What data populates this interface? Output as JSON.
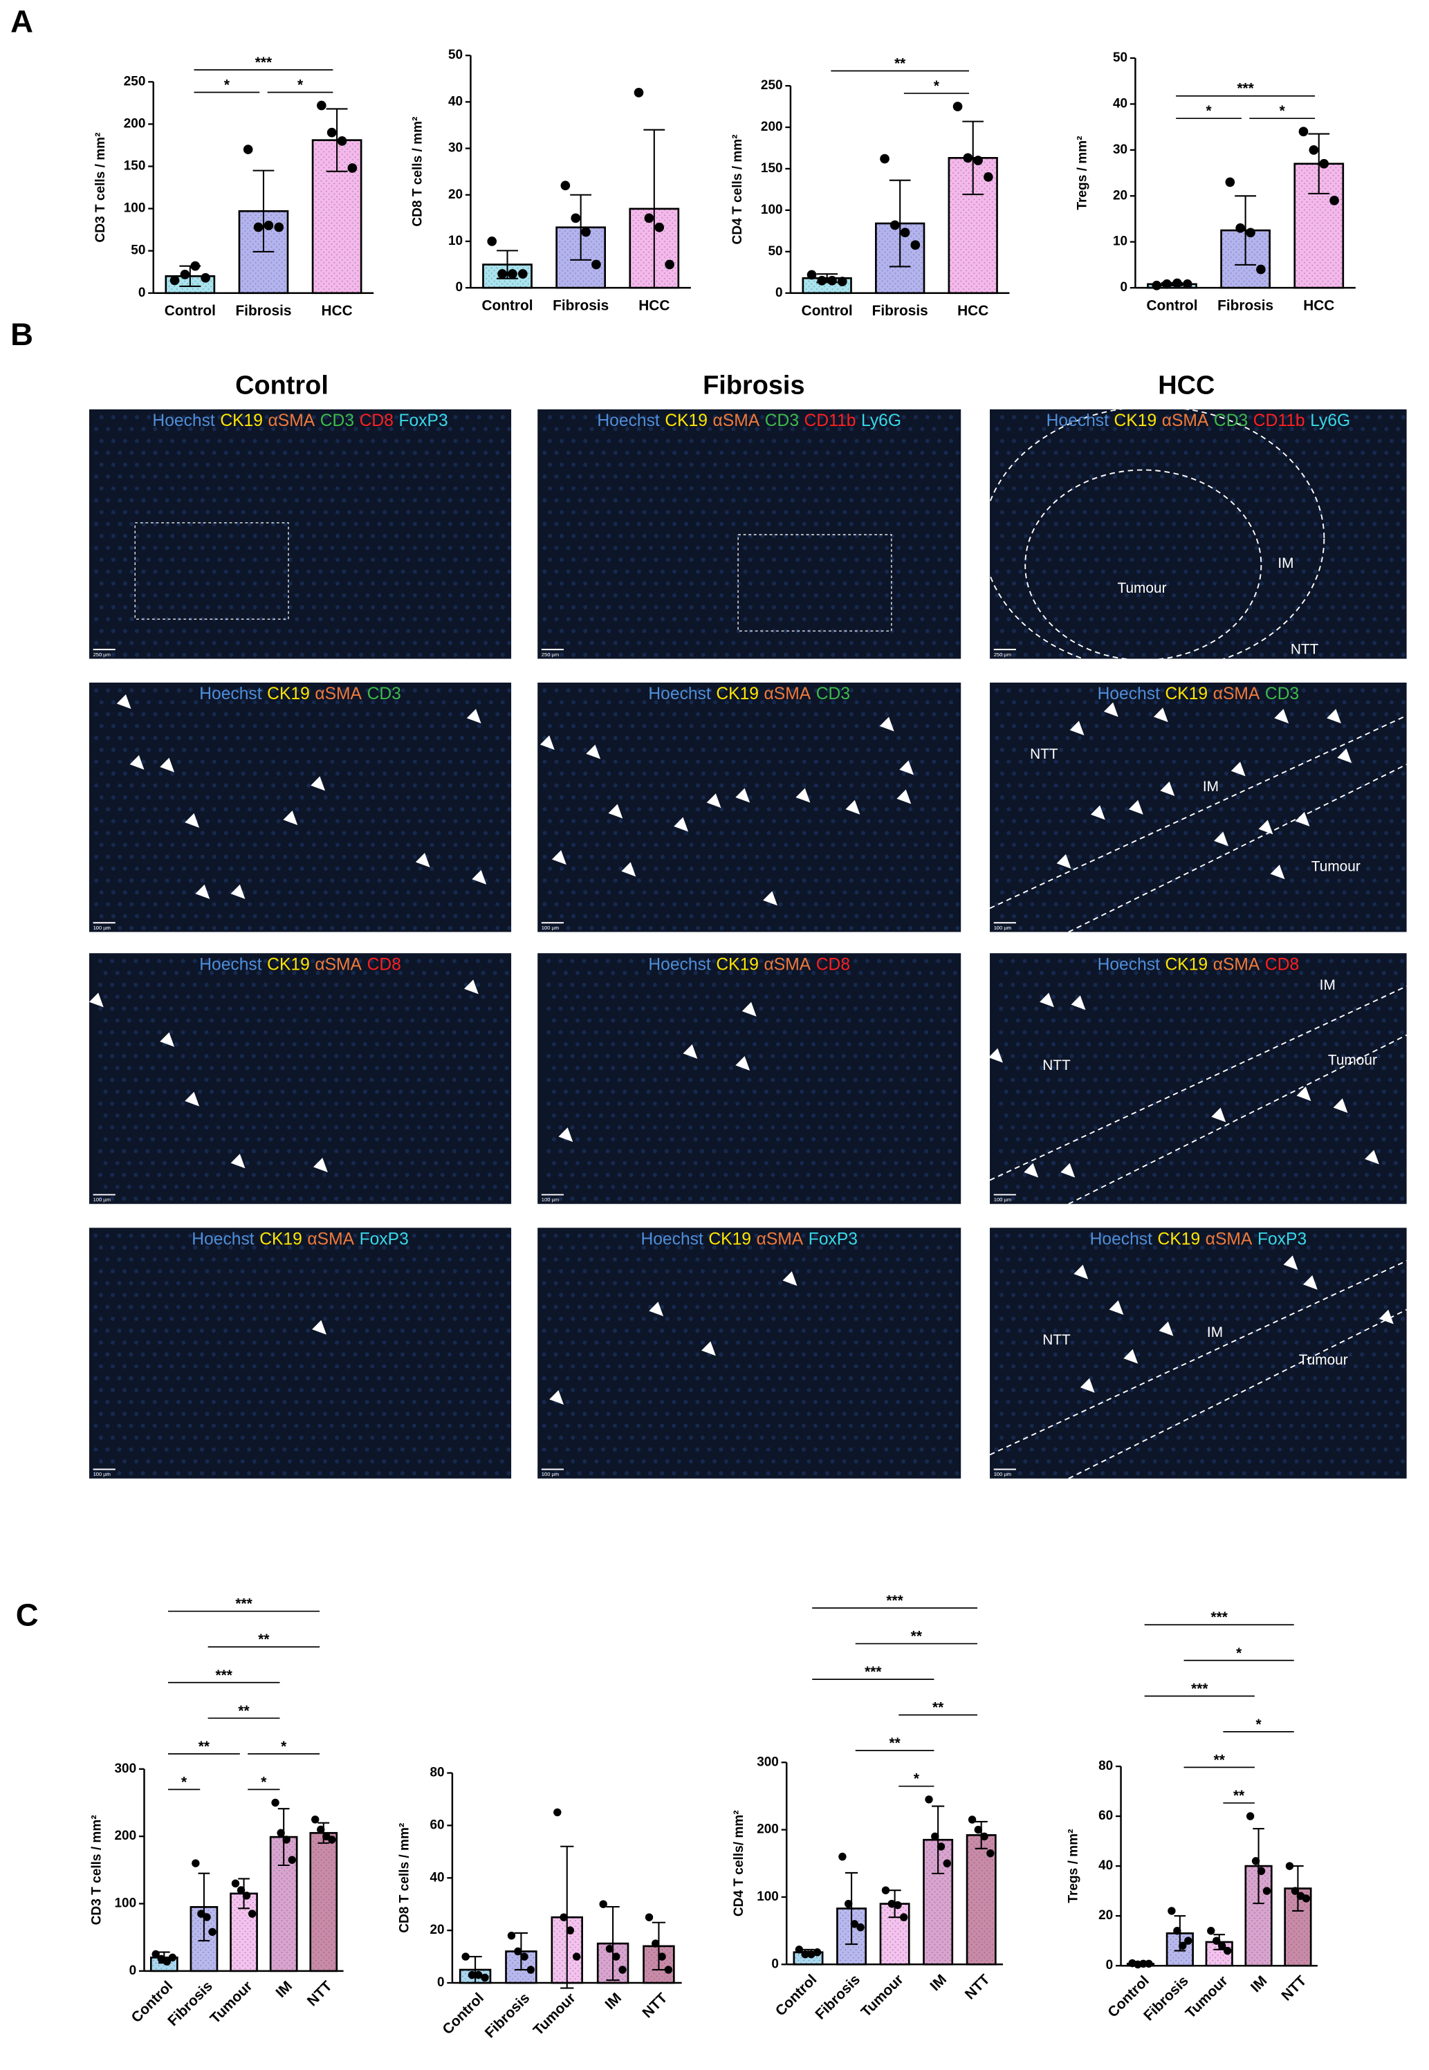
{
  "panels": [
    "A",
    "B",
    "C"
  ],
  "chart_data": [
    {
      "type": "bar",
      "y_label": "CD3 T cells / mm²",
      "categories": [
        "Control",
        "Fibrosis",
        "HCC"
      ],
      "values": [
        20,
        97,
        181
      ],
      "errors": [
        12,
        48,
        37
      ],
      "points": [
        [
          15,
          22,
          32,
          18
        ],
        [
          170,
          78,
          80,
          78
        ],
        [
          222,
          190,
          180,
          148
        ]
      ],
      "colors": [
        "#a8e4ef",
        "#b3b3f0",
        "#f5b8ec"
      ],
      "ylim": [
        0,
        250
      ],
      "yticks": [
        0,
        50,
        100,
        150,
        200,
        250
      ],
      "significance": [
        {
          "from": "Control",
          "to": "Fibrosis",
          "label": "*"
        },
        {
          "from": "Fibrosis",
          "to": "HCC",
          "label": "*"
        },
        {
          "from": "Control",
          "to": "HCC",
          "label": "***"
        }
      ]
    },
    {
      "type": "bar",
      "y_label": "CD8 T cells / mm²",
      "categories": [
        "Control",
        "Fibrosis",
        "HCC"
      ],
      "values": [
        5,
        13,
        17
      ],
      "errors": [
        3,
        7,
        17
      ],
      "points": [
        [
          10,
          3,
          3,
          3
        ],
        [
          22,
          15,
          12,
          5
        ],
        [
          42,
          15,
          13,
          5
        ]
      ],
      "colors": [
        "#a8e4ef",
        "#b3b3f0",
        "#f5b8ec"
      ],
      "ylim": [
        0,
        50
      ],
      "yticks": [
        0,
        10,
        20,
        30,
        40,
        50
      ],
      "significance": []
    },
    {
      "type": "bar",
      "y_label": "CD4 T cells / mm²",
      "categories": [
        "Control",
        "Fibrosis",
        "HCC"
      ],
      "values": [
        18,
        84,
        163
      ],
      "errors": [
        5,
        52,
        44
      ],
      "points": [
        [
          22,
          15,
          15,
          14
        ],
        [
          162,
          82,
          73,
          58
        ],
        [
          225,
          163,
          160,
          140
        ]
      ],
      "colors": [
        "#a8e4ef",
        "#b3b3f0",
        "#f5b8ec"
      ],
      "ylim": [
        0,
        250
      ],
      "yticks": [
        0,
        50,
        100,
        150,
        200,
        250
      ],
      "significance": [
        {
          "from": "Fibrosis",
          "to": "HCC",
          "label": "*"
        },
        {
          "from": "Control",
          "to": "HCC",
          "label": "**"
        }
      ]
    },
    {
      "type": "bar",
      "y_label": "Tregs / mm²",
      "categories": [
        "Control",
        "Fibrosis",
        "HCC"
      ],
      "values": [
        0.8,
        12.5,
        27
      ],
      "errors": [
        0.3,
        7.5,
        6.5
      ],
      "points": [
        [
          0.5,
          0.8,
          1,
          0.8
        ],
        [
          23,
          13,
          12,
          4
        ],
        [
          34,
          30,
          27,
          19
        ]
      ],
      "colors": [
        "#a8e4ef",
        "#b3b3f0",
        "#f5b8ec"
      ],
      "ylim": [
        0,
        50
      ],
      "yticks": [
        0,
        10,
        20,
        30,
        40,
        50
      ],
      "significance": [
        {
          "from": "Control",
          "to": "Fibrosis",
          "label": "*"
        },
        {
          "from": "Fibrosis",
          "to": "HCC",
          "label": "*"
        },
        {
          "from": "Control",
          "to": "HCC",
          "label": "***"
        }
      ]
    },
    {
      "type": "bar",
      "y_label": "CD3 T cells / mm²",
      "categories": [
        "Control",
        "Fibrosis",
        "Tumour",
        "IM",
        "NTT"
      ],
      "values": [
        20,
        95,
        115,
        199,
        205
      ],
      "errors": [
        8,
        50,
        22,
        42,
        15
      ],
      "points": [
        [
          25,
          18,
          14,
          20
        ],
        [
          160,
          85,
          80,
          58
        ],
        [
          130,
          120,
          112,
          85
        ],
        [
          250,
          205,
          195,
          165
        ],
        [
          225,
          210,
          200,
          195
        ]
      ],
      "colors": [
        "#a8d8f0",
        "#b8b8f0",
        "#f5c2ef",
        "#d9a3cf",
        "#c98aa8"
      ],
      "ylim": [
        0,
        300
      ],
      "yticks": [
        0,
        100,
        200,
        300
      ],
      "significance": [
        {
          "from": "Control",
          "to": "Fibrosis",
          "label": "*"
        },
        {
          "from": "Tumour",
          "to": "IM",
          "label": "*"
        },
        {
          "from": "Control",
          "to": "Tumour",
          "label": "**"
        },
        {
          "from": "Tumour",
          "to": "NTT",
          "label": "*"
        },
        {
          "from": "Fibrosis",
          "to": "IM",
          "label": "**"
        },
        {
          "from": "Control",
          "to": "IM",
          "label": "***"
        },
        {
          "from": "Fibrosis",
          "to": "NTT",
          "label": "**"
        },
        {
          "from": "Control",
          "to": "NTT",
          "label": "***"
        }
      ]
    },
    {
      "type": "bar",
      "y_label": "CD8 T cells / mm²",
      "categories": [
        "Control",
        "Fibrosis",
        "Tumour",
        "IM",
        "NTT"
      ],
      "values": [
        5,
        12,
        25,
        15,
        14
      ],
      "errors": [
        5,
        7,
        27,
        14,
        9
      ],
      "points": [
        [
          10,
          3,
          3,
          2
        ],
        [
          18,
          12,
          10,
          5
        ],
        [
          65,
          25,
          20,
          10
        ],
        [
          30,
          13,
          10,
          5
        ],
        [
          25,
          15,
          10,
          5
        ]
      ],
      "colors": [
        "#a8d8f0",
        "#b8b8f0",
        "#f5c2ef",
        "#d9a3cf",
        "#c98aa8"
      ],
      "ylim": [
        0,
        80
      ],
      "yticks": [
        0,
        20,
        40,
        60,
        80
      ],
      "significance": []
    },
    {
      "type": "bar",
      "y_label": "CD4 T cells/ mm²",
      "categories": [
        "Control",
        "Fibrosis",
        "Tumour",
        "IM",
        "NTT"
      ],
      "values": [
        18,
        83,
        90,
        185,
        192
      ],
      "errors": [
        4,
        53,
        20,
        50,
        20
      ],
      "points": [
        [
          22,
          15,
          15,
          18
        ],
        [
          160,
          90,
          60,
          55
        ],
        [
          110,
          90,
          88,
          70
        ],
        [
          245,
          190,
          175,
          150
        ],
        [
          215,
          200,
          190,
          165
        ]
      ],
      "colors": [
        "#a8d8f0",
        "#b8b8f0",
        "#f5c2ef",
        "#d9a3cf",
        "#c98aa8"
      ],
      "ylim": [
        0,
        300
      ],
      "yticks": [
        0,
        100,
        200,
        300
      ],
      "significance": [
        {
          "from": "Tumour",
          "to": "IM",
          "label": "*"
        },
        {
          "from": "Fibrosis",
          "to": "IM",
          "label": "**"
        },
        {
          "from": "Tumour",
          "to": "NTT",
          "label": "**"
        },
        {
          "from": "Control",
          "to": "IM",
          "label": "***"
        },
        {
          "from": "Fibrosis",
          "to": "NTT",
          "label": "**"
        },
        {
          "from": "Control",
          "to": "NTT",
          "label": "***"
        }
      ]
    },
    {
      "type": "bar",
      "y_label": "Tregs / mm²",
      "categories": [
        "Control",
        "Fibrosis",
        "Tumour",
        "IM",
        "NTT"
      ],
      "values": [
        0.8,
        13,
        9.5,
        40,
        31
      ],
      "errors": [
        0.3,
        7,
        3,
        15,
        9
      ],
      "points": [
        [
          1,
          0.5,
          0.8,
          0.8
        ],
        [
          22,
          14,
          8,
          10
        ],
        [
          14,
          10,
          8,
          6
        ],
        [
          60,
          42,
          38,
          30
        ],
        [
          40,
          30,
          28,
          27
        ]
      ],
      "colors": [
        "#a8d8f0",
        "#b8b8f0",
        "#f5c2ef",
        "#d9a3cf",
        "#c98aa8"
      ],
      "ylim": [
        0,
        80
      ],
      "yticks": [
        0,
        20,
        40,
        60,
        80
      ],
      "significance": [
        {
          "from": "Tumour",
          "to": "IM",
          "label": "**"
        },
        {
          "from": "Fibrosis",
          "to": "IM",
          "label": "**"
        },
        {
          "from": "Tumour",
          "to": "NTT",
          "label": "*"
        },
        {
          "from": "Control",
          "to": "IM",
          "label": "***"
        },
        {
          "from": "Fibrosis",
          "to": "NTT",
          "label": "*"
        },
        {
          "from": "Control",
          "to": "NTT",
          "label": "***"
        }
      ]
    }
  ],
  "micrographs": {
    "columns": [
      "Control",
      "Fibrosis",
      "HCC"
    ],
    "rows": [
      [
        {
          "stains": [
            {
              "text": "Hoechst",
              "color": "#4f8ed8"
            },
            {
              "text": "CK19",
              "color": "#ffe600"
            },
            {
              "text": "αSMA",
              "color": "#f07a3a"
            },
            {
              "text": "CD3",
              "color": "#3dbb4a"
            },
            {
              "text": "CD8",
              "color": "#ff2020"
            },
            {
              "text": "FoxP3",
              "color": "#38d8e8"
            }
          ],
          "scale": "250 µm"
        },
        {
          "stains": [
            {
              "text": "Hoechst",
              "color": "#4f8ed8"
            },
            {
              "text": "CK19",
              "color": "#ffe600"
            },
            {
              "text": "αSMA",
              "color": "#f07a3a"
            },
            {
              "text": "CD3",
              "color": "#3dbb4a"
            },
            {
              "text": "CD11b",
              "color": "#ff2020"
            },
            {
              "text": "Ly6G",
              "color": "#38d8e8"
            }
          ],
          "scale": "250 µm"
        },
        {
          "stains": [
            {
              "text": "Hoechst",
              "color": "#4f8ed8"
            },
            {
              "text": "CK19",
              "color": "#ffe600"
            },
            {
              "text": "αSMA",
              "color": "#f07a3a"
            },
            {
              "text": "CD3",
              "color": "#3dbb4a"
            },
            {
              "text": "CD11b",
              "color": "#ff2020"
            },
            {
              "text": "Ly6G",
              "color": "#38d8e8"
            }
          ],
          "regions": [
            "Tumour",
            "IM",
            "NTT"
          ],
          "scale": "250 µm"
        }
      ],
      [
        {
          "stains": [
            {
              "text": "Hoechst",
              "color": "#4f8ed8"
            },
            {
              "text": "CK19",
              "color": "#ffe600"
            },
            {
              "text": "αSMA",
              "color": "#f07a3a"
            },
            {
              "text": "CD3",
              "color": "#3dbb4a"
            }
          ],
          "scale": "100 µm"
        },
        {
          "stains": [
            {
              "text": "Hoechst",
              "color": "#4f8ed8"
            },
            {
              "text": "CK19",
              "color": "#ffe600"
            },
            {
              "text": "αSMA",
              "color": "#f07a3a"
            },
            {
              "text": "CD3",
              "color": "#3dbb4a"
            }
          ],
          "scale": "100 µm"
        },
        {
          "stains": [
            {
              "text": "Hoechst",
              "color": "#4f8ed8"
            },
            {
              "text": "CK19",
              "color": "#ffe600"
            },
            {
              "text": "αSMA",
              "color": "#f07a3a"
            },
            {
              "text": "CD3",
              "color": "#3dbb4a"
            }
          ],
          "regions": [
            "NTT",
            "IM",
            "Tumour"
          ],
          "scale": "100 µm"
        }
      ],
      [
        {
          "stains": [
            {
              "text": "Hoechst",
              "color": "#4f8ed8"
            },
            {
              "text": "CK19",
              "color": "#ffe600"
            },
            {
              "text": "αSMA",
              "color": "#f07a3a"
            },
            {
              "text": "CD8",
              "color": "#ff2020"
            }
          ],
          "scale": "100 µm"
        },
        {
          "stains": [
            {
              "text": "Hoechst",
              "color": "#4f8ed8"
            },
            {
              "text": "CK19",
              "color": "#ffe600"
            },
            {
              "text": "αSMA",
              "color": "#f07a3a"
            },
            {
              "text": "CD8",
              "color": "#ff2020"
            }
          ],
          "scale": "100 µm"
        },
        {
          "stains": [
            {
              "text": "Hoechst",
              "color": "#4f8ed8"
            },
            {
              "text": "CK19",
              "color": "#ffe600"
            },
            {
              "text": "αSMA",
              "color": "#f07a3a"
            },
            {
              "text": "CD8",
              "color": "#ff2020"
            }
          ],
          "regions": [
            "IM",
            "NTT",
            "Tumour"
          ],
          "scale": "100 µm"
        }
      ],
      [
        {
          "stains": [
            {
              "text": "Hoechst",
              "color": "#4f8ed8"
            },
            {
              "text": "CK19",
              "color": "#ffe600"
            },
            {
              "text": "αSMA",
              "color": "#f07a3a"
            },
            {
              "text": "FoxP3",
              "color": "#38d8e8"
            }
          ],
          "scale": "100 µm"
        },
        {
          "stains": [
            {
              "text": "Hoechst",
              "color": "#4f8ed8"
            },
            {
              "text": "CK19",
              "color": "#ffe600"
            },
            {
              "text": "αSMA",
              "color": "#f07a3a"
            },
            {
              "text": "FoxP3",
              "color": "#38d8e8"
            }
          ],
          "scale": "100 µm"
        },
        {
          "stains": [
            {
              "text": "Hoechst",
              "color": "#4f8ed8"
            },
            {
              "text": "CK19",
              "color": "#ffe600"
            },
            {
              "text": "αSMA",
              "color": "#f07a3a"
            },
            {
              "text": "FoxP3",
              "color": "#38d8e8"
            }
          ],
          "regions": [
            "NTT",
            "IM",
            "Tumour"
          ],
          "scale": "100 µm"
        }
      ]
    ]
  }
}
